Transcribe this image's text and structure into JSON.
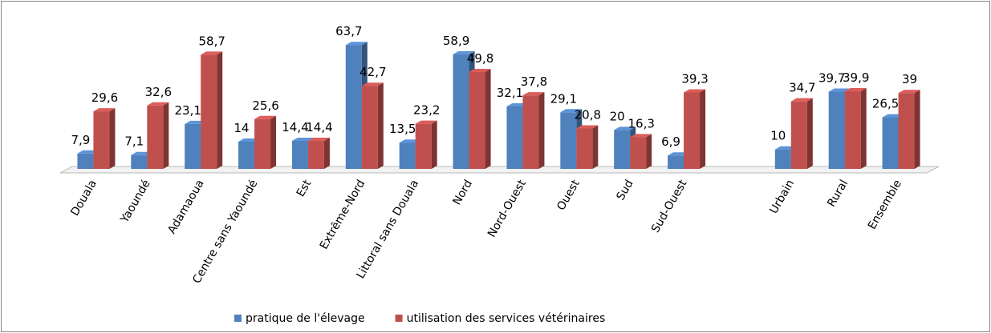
{
  "chart_data": {
    "type": "bar",
    "categories": [
      "Douala",
      "Yaoundé",
      "Adamaoua",
      "Centre sans Yaoundé",
      "Est",
      "Extrême-Nord",
      "Littoral sans Douala",
      "Nord",
      "Nord-Ouest",
      "Ouest",
      "Sud",
      "Sud-Ouest",
      null,
      "Urbain",
      "Rural",
      "Ensemble"
    ],
    "series": [
      {
        "name": "pratique de l'élevage",
        "color": "#4f81bd",
        "values": [
          7.9,
          7.1,
          23.1,
          14,
          14.4,
          63.7,
          13.5,
          58.9,
          32.1,
          29.1,
          20,
          6.9,
          null,
          10,
          39.7,
          26.5
        ],
        "value_labels": [
          "7,9",
          "7,1",
          "23,1",
          "14",
          "14,4",
          "63,7",
          "13,5",
          "58,9",
          "32,1",
          "29,1",
          "20",
          "6,9",
          null,
          "10",
          "39,7",
          "26,5"
        ]
      },
      {
        "name": "utilisation des services  vétérinaires",
        "color": "#c0504d",
        "values": [
          29.6,
          32.6,
          58.7,
          25.6,
          14.4,
          42.7,
          23.2,
          49.8,
          37.8,
          20.8,
          16.3,
          39.3,
          null,
          34.7,
          39.9,
          39
        ],
        "value_labels": [
          "29,6",
          "32,6",
          "58,7",
          "25,6",
          "14,4",
          "42,7",
          "23,2",
          "49,8",
          "37,8",
          "20,8",
          "16,3",
          "39,3",
          null,
          "34,7",
          "39,9",
          "39"
        ]
      }
    ],
    "legend": "bottom"
  }
}
